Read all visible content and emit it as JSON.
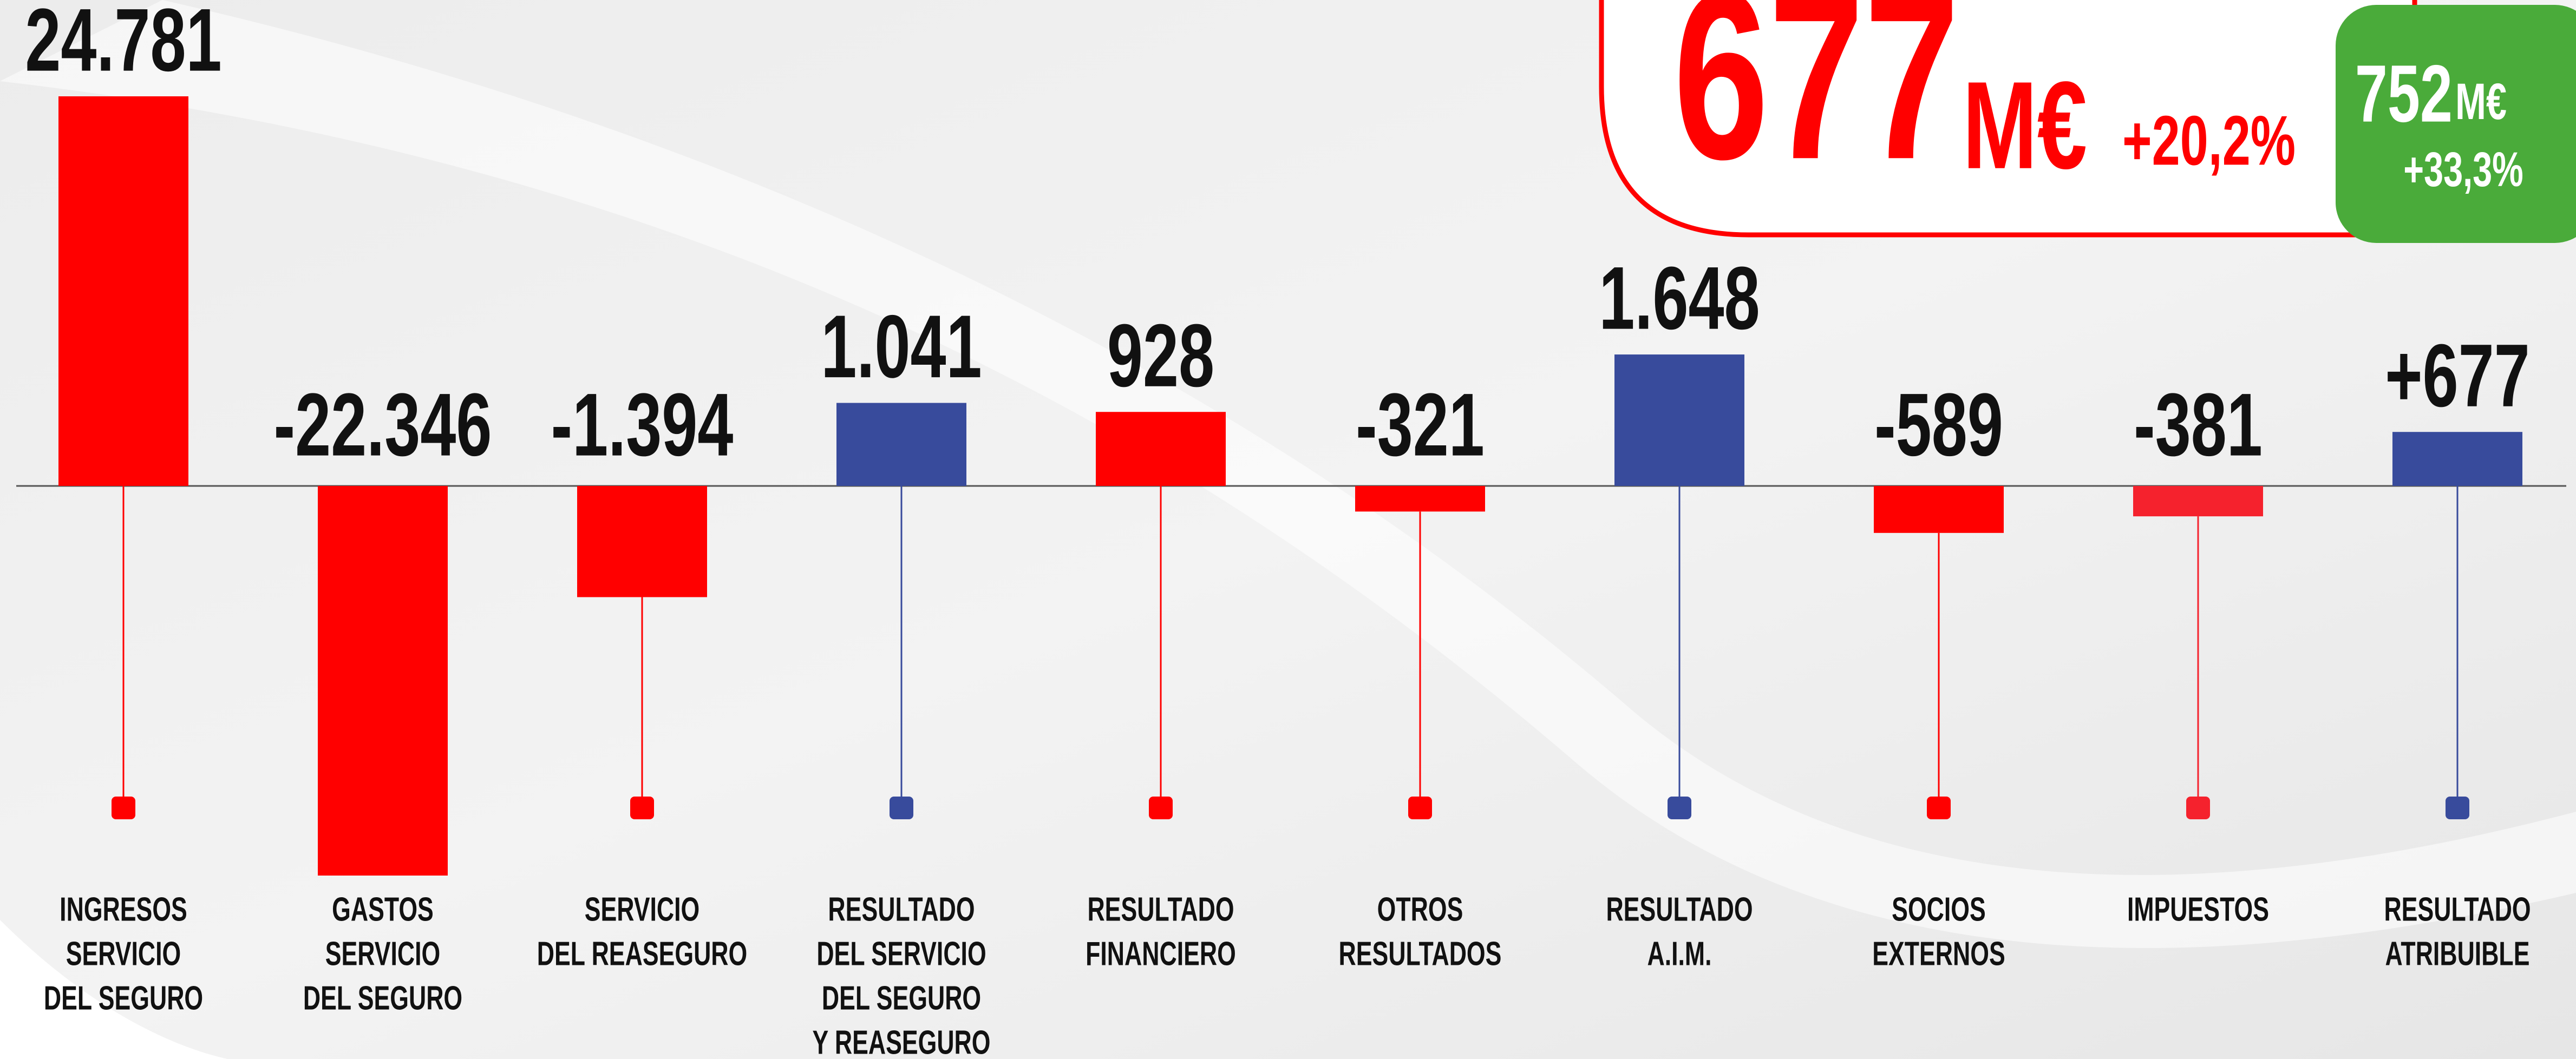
{
  "chart_data": {
    "type": "bar",
    "categories": [
      [
        "INGRESOS",
        "SERVICIO",
        "DEL SEGURO"
      ],
      [
        "GASTOS",
        "SERVICIO",
        "DEL SEGURO"
      ],
      [
        "SERVICIO",
        "DEL REASEGURO"
      ],
      [
        "RESULTADO",
        "DEL SERVICIO",
        "DEL SEGURO",
        "Y REASEGURO"
      ],
      [
        "RESULTADO",
        "FINANCIERO"
      ],
      [
        "OTROS",
        "RESULTADOS"
      ],
      [
        "RESULTADO",
        "A.I.M."
      ],
      [
        "SOCIOS",
        "EXTERNOS"
      ],
      [
        "IMPUESTOS"
      ],
      [
        "RESULTADO",
        "ATRIBUIBLE"
      ]
    ],
    "values": [
      24781,
      -22346,
      -1394,
      1041,
      928,
      -321,
      1648,
      -589,
      -381,
      677
    ],
    "value_labels": [
      "24.781",
      "-22.346",
      "-1.394",
      "1.041",
      "928",
      "-321",
      "1.648",
      "-589",
      "-381",
      "+677"
    ],
    "colors": [
      "#ff0000",
      "#ff0000",
      "#ff0000",
      "#384b9c",
      "#ff0000",
      "#ff0000",
      "#384b9c",
      "#ff0000",
      "#f5222d",
      "#384b9c"
    ],
    "headline": {
      "value": "677",
      "unit": "M€",
      "change": "+20,2%"
    },
    "badge": {
      "value": "752",
      "unit": "M€",
      "change": "+33,3%"
    }
  }
}
